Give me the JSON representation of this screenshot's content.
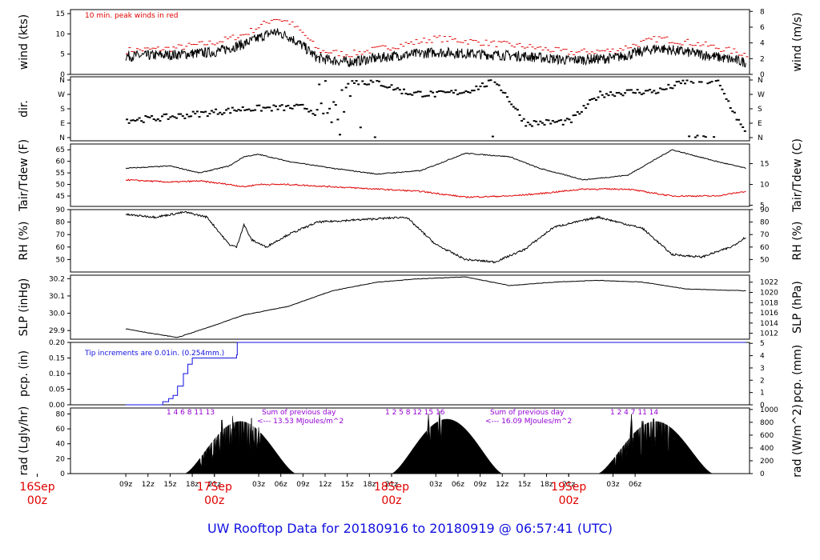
{
  "footer_title": "UW Rooftop Data for 20180916  to  20180919 @ 06:57:41  (UTC)",
  "colors": {
    "primary": "#000000",
    "peak": "#e00000",
    "precip": "#1010e0",
    "solar_note": "#9400d3",
    "day_label": "#e00000",
    "footer": "#1010e0"
  },
  "x_axis": {
    "hour_ticks": [
      "09z",
      "12z",
      "15z",
      "18z",
      "21z",
      "03z",
      "06z",
      "09z",
      "12z",
      "15z",
      "18z",
      "21z",
      "03z",
      "06z",
      "09z",
      "12z",
      "15z",
      "18z",
      "21z",
      "03z",
      "06z"
    ],
    "day_labels": [
      {
        "date": "16Sep",
        "time": "00z"
      },
      {
        "date": "17Sep",
        "time": "00z"
      },
      {
        "date": "18Sep",
        "time": "00z"
      },
      {
        "date": "19Sep",
        "time": "00z"
      }
    ]
  },
  "chart_data": [
    {
      "id": "wind",
      "type": "line",
      "ylabel": "wind (kts)",
      "ylabel_right": "wind (m/s)",
      "note": "10 min. peak winds in red",
      "ylim": [
        0,
        16
      ],
      "ylim_right": [
        0,
        8.23
      ],
      "yticks": [
        0,
        5,
        10,
        15
      ],
      "yticks_right": [
        0,
        2,
        4,
        6,
        8
      ],
      "x_hours_since_start": [
        0,
        6,
        12,
        16,
        18,
        20,
        22,
        24,
        26,
        30,
        36,
        42,
        48,
        54,
        60,
        66,
        72,
        78,
        84
      ],
      "series": [
        {
          "name": "wind",
          "color": "#000000",
          "values": [
            4.5,
            4.8,
            5.5,
            7.5,
            9,
            10.5,
            9.5,
            7,
            4,
            3,
            4.5,
            5.5,
            5,
            4.5,
            3.5,
            4,
            6.5,
            5,
            3
          ]
        },
        {
          "name": "peak",
          "color": "#e00000",
          "values": [
            6,
            6.5,
            8,
            10,
            12,
            14,
            13,
            10,
            6,
            5,
            7,
            9,
            8,
            7,
            5.5,
            6,
            9,
            7.5,
            5
          ]
        }
      ]
    },
    {
      "id": "dir",
      "type": "scatter",
      "ylabel": "dir.",
      "yticks": [
        "N",
        "W",
        "S",
        "E",
        "N"
      ],
      "yticks_right": [
        "N",
        "W",
        "S",
        "E",
        "N"
      ],
      "x_hours_since_start": [
        0,
        4,
        8,
        12,
        16,
        20,
        24,
        27,
        30,
        34,
        38,
        42,
        46,
        50,
        54,
        60,
        64,
        68,
        72,
        76,
        80,
        84
      ],
      "direction_deg": [
        110,
        120,
        140,
        160,
        180,
        185,
        190,
        130,
        350,
        345,
        280,
        270,
        290,
        355,
        90,
        100,
        270,
        285,
        290,
        355,
        350,
        5
      ]
    },
    {
      "id": "temp",
      "type": "line",
      "ylabel": "Tair/Tdew (F)",
      "ylabel_right": "Tair/Tdew (C)",
      "ylim": [
        40.5,
        67.5
      ],
      "yticks": [
        45,
        50,
        55,
        60,
        65
      ],
      "yticks_right": [
        5,
        10,
        15
      ],
      "x_hours_since_start": [
        0,
        6,
        10,
        14,
        16,
        18,
        22,
        28,
        34,
        40,
        46,
        52,
        56,
        62,
        68,
        74,
        80,
        84
      ],
      "series": [
        {
          "name": "Tair",
          "color": "#000000",
          "values": [
            57,
            58,
            55,
            58,
            62,
            63,
            60,
            57,
            54.5,
            56,
            63.5,
            62,
            57,
            52,
            54,
            65,
            60,
            57
          ]
        },
        {
          "name": "Tdew",
          "color": "#e00000",
          "values": [
            52,
            51,
            51.5,
            50,
            49,
            50,
            50,
            49,
            48,
            47,
            44.5,
            45,
            46,
            48,
            48,
            45,
            45,
            47
          ]
        }
      ]
    },
    {
      "id": "rh",
      "type": "line",
      "ylabel": "RH (%)",
      "ylabel_right": "RH (%)",
      "ylim": [
        40,
        90
      ],
      "yticks": [
        50,
        60,
        70,
        80,
        90
      ],
      "yticks_right": [
        50,
        60,
        70,
        80,
        90
      ],
      "x_hours_since_start": [
        0,
        4,
        8,
        11,
        14,
        15,
        16,
        17,
        19,
        22,
        26,
        32,
        38,
        42,
        46,
        50,
        54,
        58,
        64,
        70,
        74,
        78,
        82,
        84
      ],
      "series": [
        {
          "name": "RH",
          "color": "#000000",
          "values": [
            86,
            84,
            88,
            84,
            62,
            60,
            78,
            66,
            60,
            70,
            80,
            82,
            84,
            62,
            50,
            48,
            58,
            76,
            84,
            75,
            54,
            52,
            60,
            68
          ]
        }
      ]
    },
    {
      "id": "slp",
      "type": "line",
      "ylabel": "SLP (inHg)",
      "ylabel_right": "SLP (hPa)",
      "ylim": [
        29.85,
        30.22
      ],
      "yticks": [
        29.9,
        30.0,
        30.1,
        30.2
      ],
      "yticks_right": [
        1012,
        1014,
        1016,
        1018,
        1020,
        1022
      ],
      "x_hours_since_start": [
        0,
        4,
        7,
        12,
        16,
        22,
        28,
        34,
        40,
        46,
        52,
        58,
        64,
        70,
        76,
        84
      ],
      "series": [
        {
          "name": "SLP",
          "color": "#000000",
          "values": [
            29.91,
            29.88,
            29.86,
            29.93,
            29.99,
            30.04,
            30.13,
            30.18,
            30.2,
            30.21,
            30.16,
            30.18,
            30.19,
            30.18,
            30.14,
            30.13
          ]
        }
      ]
    },
    {
      "id": "pcp",
      "type": "line",
      "ylabel": "pcp. (in)",
      "ylabel_right": "pcp. (mm)",
      "note": "Tip increments are 0.01in. (0.254mm.)",
      "ylim": [
        0,
        0.2
      ],
      "yticks": [
        0.0,
        0.05,
        0.1,
        0.15,
        0.2
      ],
      "yticks_right": [
        0,
        1,
        2,
        3,
        4,
        5
      ],
      "x_hours_since_start": [
        0,
        4.5,
        5,
        5.8,
        6.4,
        7,
        7.8,
        8.4,
        9,
        12.5,
        15,
        15.1,
        84
      ],
      "series": [
        {
          "name": "precip",
          "color": "#1010e0",
          "values": [
            0,
            0,
            0.01,
            0.02,
            0.03,
            0.06,
            0.1,
            0.13,
            0.15,
            0.15,
            0.16,
            0.2,
            0.2
          ]
        }
      ]
    },
    {
      "id": "rad",
      "type": "area",
      "ylabel": "rad (Lgly/hr)",
      "ylabel_right": "rad (W/m^2)",
      "ylim": [
        0,
        88
      ],
      "yticks": [
        0,
        20,
        40,
        60,
        80
      ],
      "yticks_right": [
        0,
        200,
        400,
        600,
        800,
        1000
      ],
      "day_annotations": [
        {
          "hours": "1  4  6  8  11  13",
          "sum_label": "Sum of previous day",
          "sum_value": "<--- 13.53 MJoules/m^2"
        },
        {
          "hours": "1  2  5  8  12  15  16",
          "sum_label": "Sum of previous day",
          "sum_value": "<--- 16.09 MJoules/m^2"
        },
        {
          "hours": "1  2  4  7  11  14",
          "sum_label": "",
          "sum_value": ""
        }
      ],
      "days": [
        {
          "rise_hour": 8,
          "set_hour": 23,
          "peak": 70,
          "spikes": [
            [
              13,
              80
            ],
            [
              14.5,
              86
            ],
            [
              17,
              83
            ],
            [
              18,
              62
            ]
          ]
        },
        {
          "rise_hour": 36,
          "set_hour": 51,
          "peak": 73,
          "spikes": [
            [
              41,
              80
            ],
            [
              42.5,
              84
            ]
          ]
        },
        {
          "rise_hour": 64,
          "set_hour": 79.5,
          "peak": 70,
          "spikes": [
            [
              68.5,
              80
            ],
            [
              70,
              88
            ],
            [
              71.5,
              82
            ]
          ]
        }
      ]
    }
  ]
}
